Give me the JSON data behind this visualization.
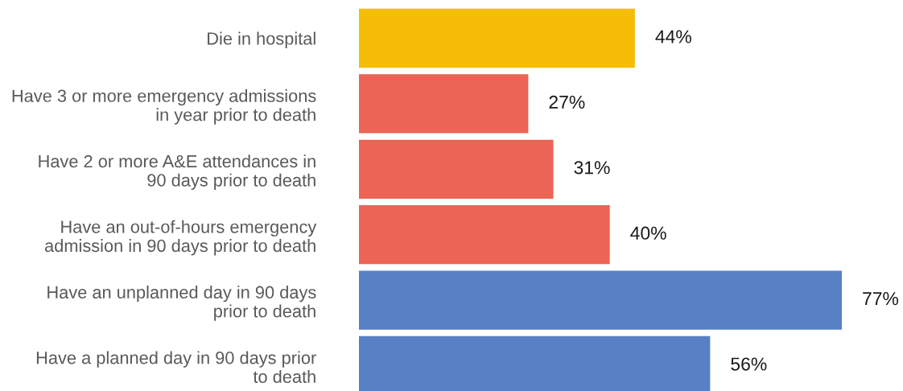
{
  "chart_data": {
    "type": "bar",
    "orientation": "horizontal",
    "categories": [
      "Die in hospital",
      "Have 3 or more emergency admissions\nin year prior to death",
      "Have 2 or more A&E attendances in\n90 days prior to death",
      "Have an out-of-hours emergency\nadmission in 90 days prior to death",
      "Have an unplanned day in 90 days\nprior to death",
      "Have a planned day in 90 days prior\nto death"
    ],
    "values": [
      44,
      27,
      31,
      40,
      77,
      56
    ],
    "colors": [
      "#f5bd06",
      "#ec6455",
      "#ec6455",
      "#ec6455",
      "#5880c4",
      "#5880c4"
    ],
    "value_labels": [
      "44%",
      "27%",
      "31%",
      "40%",
      "77%",
      "56%"
    ],
    "tick_labels": "y",
    "grid": false,
    "legend": false
  }
}
